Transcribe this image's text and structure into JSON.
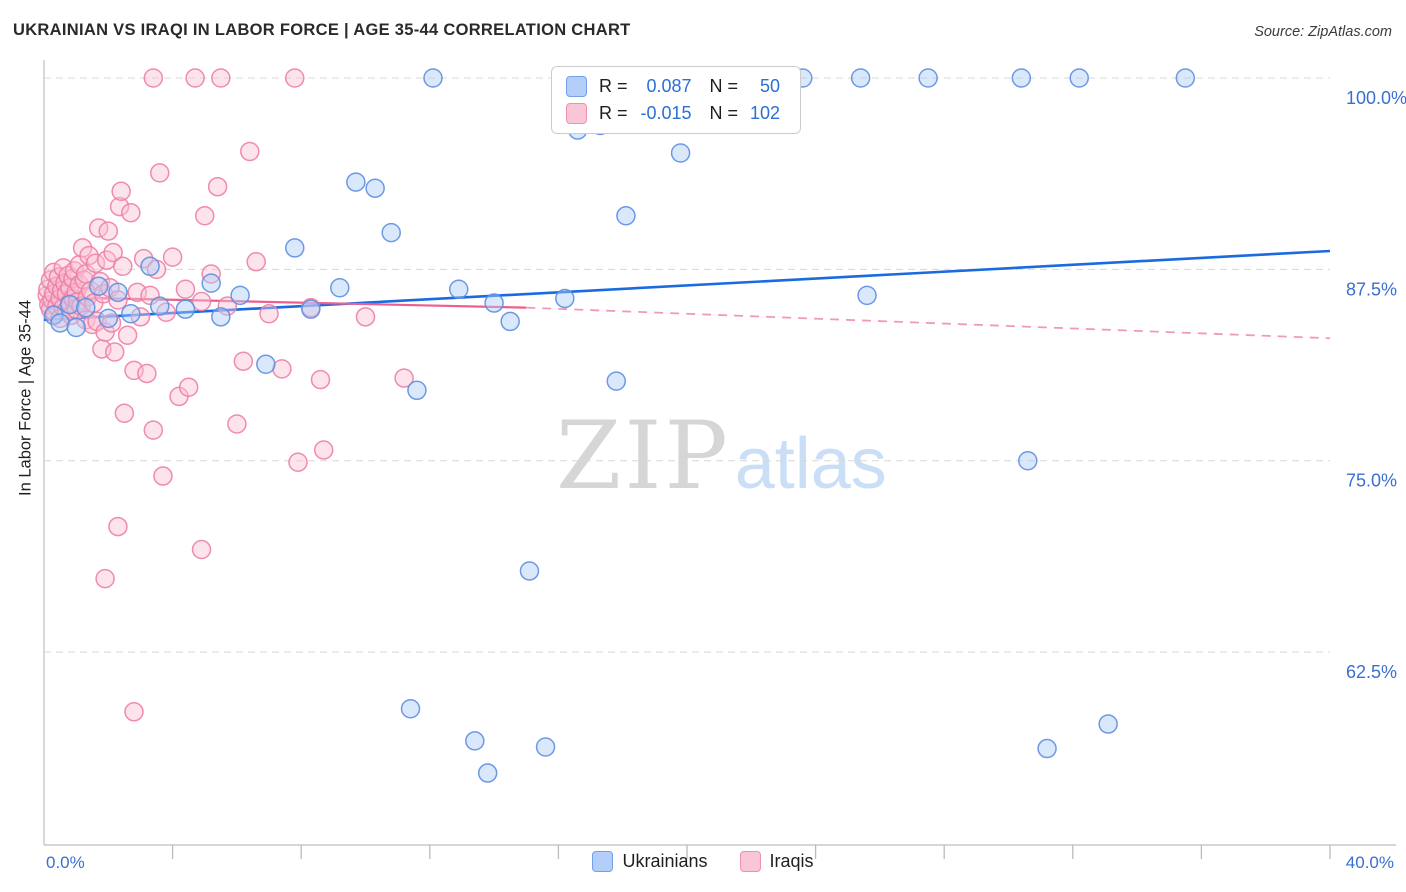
{
  "header": {
    "title": "UKRAINIAN VS IRAQI IN LABOR FORCE | AGE 35-44 CORRELATION CHART",
    "source": "Source: ZipAtlas.com"
  },
  "watermark": {
    "zip": "ZIP",
    "atlas": "atlas"
  },
  "legend_box": {
    "rows": [
      {
        "series": "Ukrainians",
        "r_label": "R =",
        "r_value": "0.087",
        "n_label": "N =",
        "n_value": "50"
      },
      {
        "series": "Iraqis",
        "r_label": "R =",
        "r_value": "-0.015",
        "n_label": "N =",
        "n_value": "102"
      }
    ]
  },
  "bottom_legend": [
    {
      "label": "Ukrainians"
    },
    {
      "label": "Iraqis"
    }
  ],
  "theme": {
    "accent_blue": "#2a6fd4",
    "axis_label_color": "#3a6fd0",
    "grid_color": "#d8d8d8",
    "axis_line_color": "#c9c9c9",
    "title_color": "#2a2a2a",
    "ukrainian_fill": "#aecbf8",
    "ukrainian_stroke": "#5e8fe0",
    "iraqi_fill": "#f9c2d4",
    "iraqi_stroke": "#ee7fa6",
    "trend_blue": "#1a6be0",
    "trend_pink": "#ee5f8b",
    "trend_pink_dashed": "#f29ab5"
  },
  "chart_data": {
    "type": "scatter",
    "title": "UKRAINIAN VS IRAQI IN LABOR FORCE | AGE 35-44 CORRELATION CHART",
    "xlabel": "",
    "ylabel": "In Labor Force | Age 35-44",
    "xlim": [
      0,
      40
    ],
    "ylim": [
      49.9,
      100
    ],
    "x_unit": "%",
    "y_unit": "%",
    "grid": "horizontal-dashed",
    "legend_position": "top-center",
    "x_tick_labels": {
      "left": "0.0%",
      "right": "40.0%"
    },
    "y_ticks": [
      {
        "value": 100,
        "label": "100.0%"
      },
      {
        "value": 87.5,
        "label": "87.5%"
      },
      {
        "value": 75,
        "label": "75.0%"
      },
      {
        "value": 62.5,
        "label": "62.5%"
      }
    ],
    "series": [
      {
        "name": "Ukrainians",
        "R": 0.087,
        "N": 50,
        "points": [
          [
            0.3,
            84.5
          ],
          [
            0.5,
            84.0
          ],
          [
            0.8,
            85.2
          ],
          [
            1.0,
            83.7
          ],
          [
            1.3,
            85.0
          ],
          [
            1.7,
            86.4
          ],
          [
            2.0,
            84.3
          ],
          [
            2.3,
            86.0
          ],
          [
            2.7,
            84.6
          ],
          [
            3.3,
            87.7
          ],
          [
            3.6,
            85.1
          ],
          [
            4.4,
            84.9
          ],
          [
            5.2,
            86.6
          ],
          [
            5.5,
            84.4
          ],
          [
            6.1,
            85.8
          ],
          [
            6.9,
            81.3
          ],
          [
            7.8,
            88.9
          ],
          [
            8.3,
            84.9
          ],
          [
            9.2,
            86.3
          ],
          [
            9.7,
            93.2
          ],
          [
            10.3,
            92.8
          ],
          [
            10.8,
            89.9
          ],
          [
            11.4,
            58.8
          ],
          [
            11.6,
            79.6
          ],
          [
            12.1,
            100
          ],
          [
            12.9,
            86.2
          ],
          [
            13.4,
            56.7
          ],
          [
            13.8,
            54.6
          ],
          [
            14.0,
            85.3
          ],
          [
            14.5,
            84.1
          ],
          [
            15.1,
            67.8
          ],
          [
            15.6,
            56.3
          ],
          [
            16.2,
            85.6
          ],
          [
            16.6,
            96.6
          ],
          [
            17.3,
            96.9
          ],
          [
            17.8,
            80.2
          ],
          [
            18.1,
            91.0
          ],
          [
            19.8,
            95.1
          ],
          [
            20.8,
            100
          ],
          [
            22.0,
            100
          ],
          [
            23.6,
            100
          ],
          [
            25.4,
            100
          ],
          [
            25.6,
            85.8
          ],
          [
            27.5,
            100
          ],
          [
            30.4,
            100
          ],
          [
            30.6,
            75.0
          ],
          [
            31.2,
            56.2
          ],
          [
            32.2,
            100
          ],
          [
            33.1,
            57.8
          ],
          [
            35.5,
            100
          ]
        ]
      },
      {
        "name": "Iraqis",
        "R": -0.015,
        "N": 102,
        "points": [
          [
            0.1,
            85.8
          ],
          [
            0.12,
            86.2
          ],
          [
            0.15,
            85.2
          ],
          [
            0.2,
            86.8
          ],
          [
            0.2,
            84.9
          ],
          [
            0.25,
            85.5
          ],
          [
            0.3,
            87.3
          ],
          [
            0.3,
            85.9
          ],
          [
            0.35,
            84.6
          ],
          [
            0.4,
            86.4
          ],
          [
            0.4,
            85.1
          ],
          [
            0.45,
            87.0
          ],
          [
            0.5,
            85.6
          ],
          [
            0.5,
            84.3
          ],
          [
            0.55,
            86.1
          ],
          [
            0.6,
            87.6
          ],
          [
            0.6,
            85.0
          ],
          [
            0.65,
            86.6
          ],
          [
            0.7,
            84.8
          ],
          [
            0.7,
            85.9
          ],
          [
            0.75,
            87.1
          ],
          [
            0.8,
            86.3
          ],
          [
            0.8,
            85.3
          ],
          [
            0.85,
            84.5
          ],
          [
            0.9,
            86.9
          ],
          [
            0.9,
            85.6
          ],
          [
            0.95,
            87.4
          ],
          [
            1.0,
            86.0
          ],
          [
            1.0,
            84.9
          ],
          [
            1.05,
            85.4
          ],
          [
            1.1,
            87.8
          ],
          [
            1.1,
            86.5
          ],
          [
            1.15,
            85.1
          ],
          [
            1.2,
            88.9
          ],
          [
            1.25,
            86.8
          ],
          [
            1.3,
            84.2
          ],
          [
            1.3,
            87.2
          ],
          [
            1.35,
            85.7
          ],
          [
            1.4,
            88.4
          ],
          [
            1.45,
            86.1
          ],
          [
            1.5,
            83.9
          ],
          [
            1.55,
            85.3
          ],
          [
            1.6,
            87.9
          ],
          [
            1.65,
            84.1
          ],
          [
            1.7,
            90.2
          ],
          [
            1.75,
            86.7
          ],
          [
            1.8,
            82.3
          ],
          [
            1.85,
            85.9
          ],
          [
            1.9,
            83.4
          ],
          [
            1.95,
            88.1
          ],
          [
            2.0,
            90.0
          ],
          [
            2.05,
            86.3
          ],
          [
            2.1,
            84.0
          ],
          [
            2.15,
            88.6
          ],
          [
            2.2,
            82.1
          ],
          [
            2.3,
            85.5
          ],
          [
            2.35,
            91.6
          ],
          [
            2.4,
            92.6
          ],
          [
            2.45,
            87.7
          ],
          [
            2.5,
            78.1
          ],
          [
            2.6,
            83.2
          ],
          [
            2.7,
            91.2
          ],
          [
            2.8,
            80.9
          ],
          [
            2.9,
            86.0
          ],
          [
            3.0,
            84.4
          ],
          [
            3.1,
            88.2
          ],
          [
            3.2,
            80.7
          ],
          [
            3.3,
            85.8
          ],
          [
            3.4,
            100
          ],
          [
            3.4,
            77.0
          ],
          [
            3.5,
            87.5
          ],
          [
            3.6,
            93.8
          ],
          [
            3.7,
            74.0
          ],
          [
            3.8,
            84.7
          ],
          [
            4.0,
            88.3
          ],
          [
            4.2,
            79.2
          ],
          [
            4.4,
            86.2
          ],
          [
            4.5,
            79.8
          ],
          [
            4.7,
            100
          ],
          [
            4.9,
            85.4
          ],
          [
            5.0,
            91.0
          ],
          [
            5.2,
            87.2
          ],
          [
            5.4,
            92.9
          ],
          [
            5.5,
            100
          ],
          [
            5.7,
            85.1
          ],
          [
            6.0,
            77.4
          ],
          [
            6.2,
            81.5
          ],
          [
            6.4,
            95.2
          ],
          [
            6.6,
            88.0
          ],
          [
            7.0,
            84.6
          ],
          [
            7.4,
            81.0
          ],
          [
            7.8,
            100
          ],
          [
            7.9,
            74.9
          ],
          [
            8.3,
            85.0
          ],
          [
            8.6,
            80.3
          ],
          [
            1.9,
            67.3
          ],
          [
            2.8,
            58.6
          ],
          [
            2.3,
            70.7
          ],
          [
            4.9,
            69.2
          ],
          [
            8.7,
            75.7
          ],
          [
            10.0,
            84.4
          ],
          [
            11.2,
            80.4
          ]
        ]
      }
    ],
    "trend_lines": [
      {
        "series": "Ukrainians",
        "style": "solid",
        "x1": 0,
        "y1": 84.2,
        "x2": 40,
        "y2": 88.7,
        "color": "#1a6be0",
        "width": 2.6
      },
      {
        "series": "Iraqis",
        "style": "solid",
        "x1": 0,
        "y1": 85.7,
        "x2": 15,
        "y2": 85.0,
        "color": "#ee5f8b",
        "width": 2.2
      },
      {
        "series": "Iraqis",
        "style": "dashed",
        "x1": 15,
        "y1": 85.0,
        "x2": 40,
        "y2": 83.0,
        "color": "#f29ab5",
        "width": 1.8
      }
    ]
  }
}
